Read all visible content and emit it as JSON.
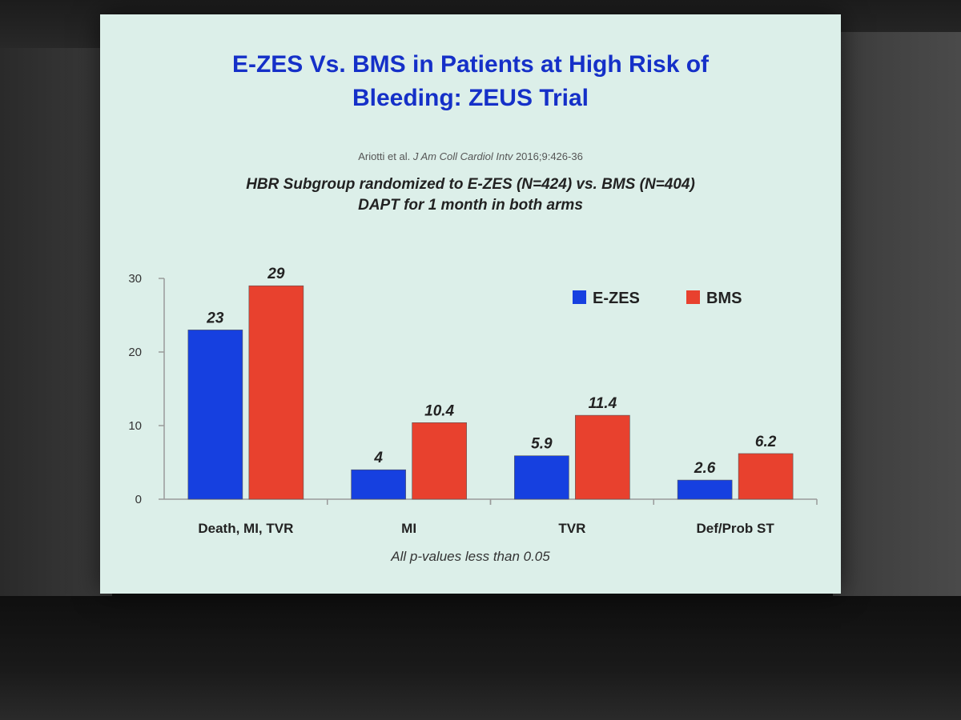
{
  "slide": {
    "title_line1": "E-ZES Vs. BMS in Patients at High Risk of",
    "title_line2": "Bleeding: ZEUS Trial",
    "citation_authors": "Ariotti et al. ",
    "citation_journal": "J Am Coll Cardiol Intv",
    "citation_ref": " 2016;9:426-36",
    "subtitle_line1": "HBR Subgroup randomized to E-ZES (N=424) vs. BMS (N=404)",
    "subtitle_line2": "DAPT for 1 month in both arms",
    "footnote": "All p-values less than 0.05"
  },
  "colors": {
    "ezes": "#1640e0",
    "bms": "#e8412e",
    "title": "#1530c8"
  },
  "chart_data": {
    "type": "bar",
    "categories": [
      "Death, MI, TVR",
      "MI",
      "TVR",
      "Def/Prob ST"
    ],
    "series": [
      {
        "name": "E-ZES",
        "values": [
          23,
          4,
          5.9,
          2.6
        ],
        "labels": [
          "23",
          "4",
          "5.9",
          "2.6"
        ]
      },
      {
        "name": "BMS",
        "values": [
          29,
          10.4,
          11.4,
          6.2
        ],
        "labels": [
          "29",
          "10.4",
          "11.4",
          "6.2"
        ]
      }
    ],
    "yticks": [
      0,
      10,
      20,
      30
    ],
    "ylim": [
      0,
      30
    ],
    "title": "",
    "xlabel": "",
    "ylabel": "",
    "legend_position": "top-right",
    "grid": false
  }
}
